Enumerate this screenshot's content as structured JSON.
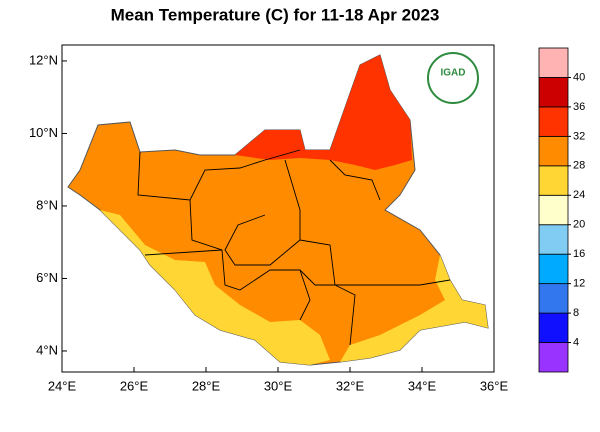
{
  "map": {
    "title": "Mean Temperature (C) for 11-18 Apr 2023",
    "xlim": [
      24,
      36
    ],
    "ylim": [
      3.42,
      12.44
    ],
    "xticks": [
      {
        "value": 24,
        "label": "24°E"
      },
      {
        "value": 26,
        "label": "26°E"
      },
      {
        "value": 28,
        "label": "28°E"
      },
      {
        "value": 30,
        "label": "30°E"
      },
      {
        "value": 32,
        "label": "32°E"
      },
      {
        "value": 34,
        "label": "34°E"
      },
      {
        "value": 36,
        "label": "36°E"
      }
    ],
    "yticks": [
      {
        "value": 4,
        "label": "4°N"
      },
      {
        "value": 6,
        "label": "6°N"
      },
      {
        "value": 8,
        "label": "8°N"
      },
      {
        "value": 10,
        "label": "10°N"
      },
      {
        "value": 12,
        "label": "12°N"
      }
    ],
    "logo": "IGAD",
    "colorbar": {
      "ticks": [
        4,
        8,
        12,
        16,
        20,
        24,
        28,
        32,
        36,
        40
      ],
      "colors": [
        "#9933ff",
        "#1010ff",
        "#3377ee",
        "#00aaff",
        "#80ccf2",
        "#ffffcc",
        "#ffd633",
        "#ff8c00",
        "#ff3300",
        "#cc0000",
        "#ffb3b3"
      ]
    }
  }
}
